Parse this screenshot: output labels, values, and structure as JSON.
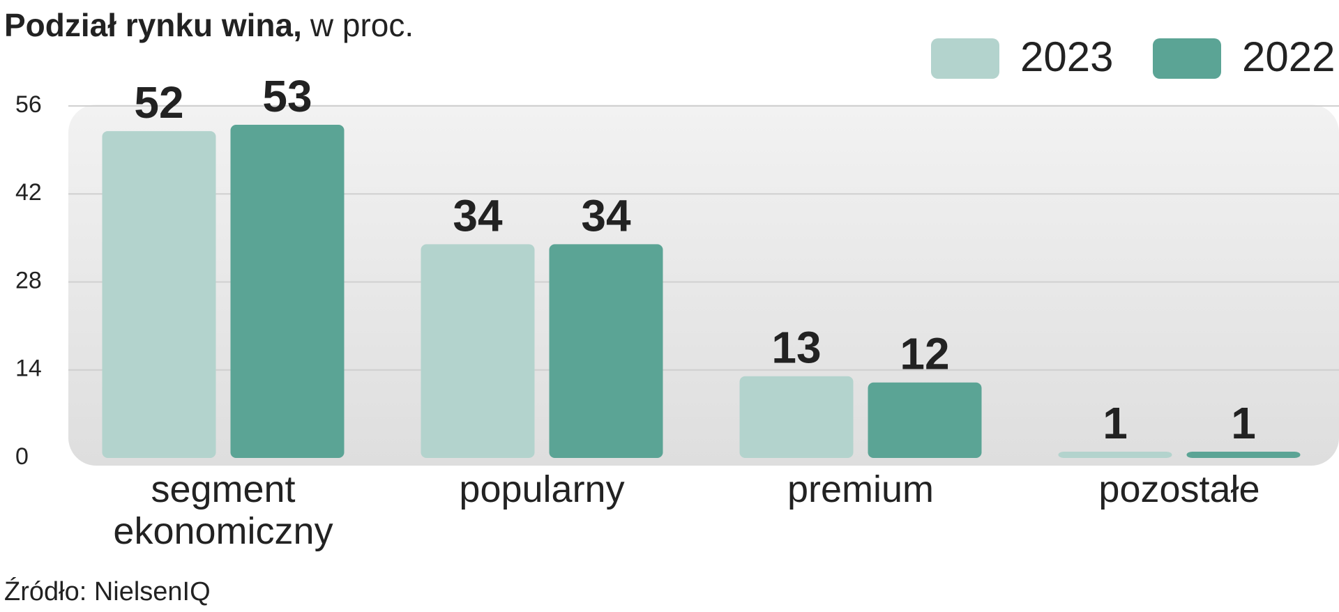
{
  "chart_data": {
    "type": "bar",
    "title": "Podział rynku wina,",
    "subtitle": "w proc.",
    "source": "Źródło: NielsenIQ",
    "categories": [
      "segment ekonomiczny",
      "popularny",
      "premium",
      "pozostałe"
    ],
    "series": [
      {
        "name": "2023",
        "color": "#b3d3cd",
        "values": [
          52,
          34,
          13,
          1
        ]
      },
      {
        "name": "2022",
        "color": "#5ba495",
        "values": [
          53,
          34,
          12,
          1
        ]
      }
    ],
    "ylim": [
      0,
      56
    ],
    "yticks": [
      0,
      14,
      28,
      42,
      56
    ],
    "grid": true,
    "legend": "top-right"
  }
}
